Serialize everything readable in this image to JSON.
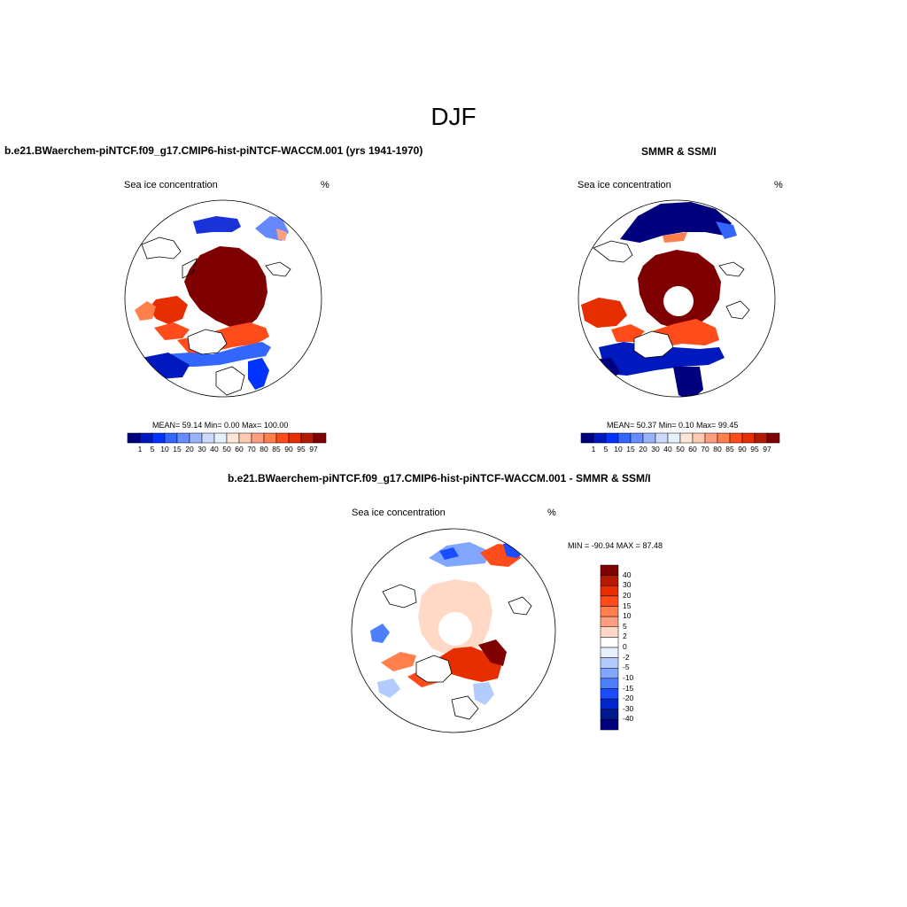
{
  "figure": {
    "main_title": "DJF"
  },
  "panels": [
    {
      "title": "b.e21.BWaerchem-piNTCF.f09_g17.CMIP6-hist-piNTCF-WACCM.001 (yrs 1941-1970)",
      "left_label": "Sea ice concentration",
      "right_label": "%",
      "stats": "MEAN=  59.14  Min=    0.00  Max= 100.00"
    },
    {
      "title": "SMMR & SSM/I",
      "left_label": "Sea ice concentration",
      "right_label": "%",
      "stats": "MEAN=  50.37  Min=    0.10  Max=  99.45"
    },
    {
      "title": "b.e21.BWaerchem-piNTCF.f09_g17.CMIP6-hist-piNTCF-WACCM.001 - SMMR & SSM/I",
      "left_label": "Sea ice concentration",
      "right_label": "%",
      "stats": "MIN = -90.94 MAX =  87.48"
    }
  ],
  "colorbars": {
    "concentration": {
      "labels": [
        "1",
        "5",
        "10",
        "15",
        "20",
        "30",
        "40",
        "50",
        "60",
        "70",
        "80",
        "85",
        "90",
        "95",
        "97"
      ],
      "colors": [
        "#00007f",
        "#0019bf",
        "#0033ff",
        "#3366ff",
        "#668cff",
        "#99b3ff",
        "#ccdaff",
        "#e6f0ff",
        "#ffe6d9",
        "#ffccb3",
        "#ff9e80",
        "#ff7f4d",
        "#ff4c1a",
        "#e62e00",
        "#b31a00",
        "#7f0000"
      ]
    },
    "difference": {
      "labels": [
        "40",
        "30",
        "20",
        "15",
        "10",
        "5",
        "2",
        "0",
        "-2",
        "-5",
        "-10",
        "-15",
        "-20",
        "-30",
        "-40"
      ],
      "colors": [
        "#7f0000",
        "#b31a00",
        "#e62e00",
        "#ff4c1a",
        "#ff7f4d",
        "#ff9e80",
        "#ffd9c6",
        "#ffffff",
        "#e6f0ff",
        "#b3ccff",
        "#80a6ff",
        "#4d80ff",
        "#1a4dff",
        "#0026cc",
        "#00198c",
        "#00007f"
      ]
    }
  }
}
